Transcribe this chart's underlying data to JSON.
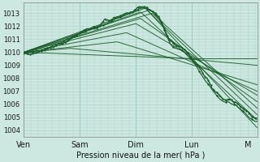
{
  "bg_color": "#cce8e0",
  "grid_color": "#b0d4cc",
  "line_color": "#1a5c2a",
  "ylabel_ticks": [
    1004,
    1005,
    1006,
    1007,
    1008,
    1009,
    1010,
    1011,
    1012,
    1013
  ],
  "x_tick_labels": [
    "Ven",
    "Sam",
    "Dim",
    "Lun",
    "M"
  ],
  "x_tick_positions": [
    0,
    24,
    48,
    72,
    96
  ],
  "xlabel": "Pression niveau de la mer( hPa )",
  "ymin": 1003.5,
  "ymax": 1013.8,
  "xmin": 0,
  "xmax": 100
}
